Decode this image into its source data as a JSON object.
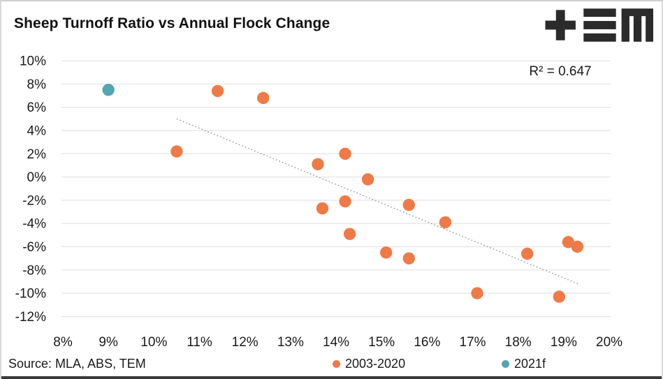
{
  "header": {
    "logo_name": "TEM"
  },
  "annotation": {
    "r_squared": "R² = 0.647"
  },
  "footer": {
    "source": "Source: MLA, ABS, TEM"
  },
  "chart_data": {
    "type": "scatter",
    "title": "Sheep Turnoff Ratio vs Annual Flock Change",
    "xlabel": "",
    "ylabel": "",
    "x_range": [
      8,
      20
    ],
    "y_range": [
      -12,
      10
    ],
    "x_tick_values": [
      8,
      9,
      10,
      11,
      12,
      13,
      14,
      15,
      16,
      17,
      18,
      19,
      20
    ],
    "x_tick_labels": [
      "8%",
      "9%",
      "10%",
      "11%",
      "12%",
      "13%",
      "14%",
      "15%",
      "16%",
      "17%",
      "18%",
      "19%",
      "20%"
    ],
    "y_tick_values": [
      10,
      8,
      6,
      4,
      2,
      0,
      -2,
      -4,
      -6,
      -8,
      -10,
      -12
    ],
    "y_tick_labels": [
      "10%",
      "8%",
      "6%",
      "4%",
      "2%",
      "0%",
      "-2%",
      "-4%",
      "-6%",
      "-8%",
      "-10%",
      "-12%"
    ],
    "grid": "horizontal-only",
    "legend_position": "bottom",
    "series": [
      {
        "name": "2003-2020",
        "color": "#EE7B47",
        "points": [
          [
            10.5,
            2.2
          ],
          [
            11.4,
            7.4
          ],
          [
            12.4,
            6.8
          ],
          [
            13.6,
            1.1
          ],
          [
            13.7,
            -2.7
          ],
          [
            14.2,
            2.0
          ],
          [
            14.2,
            -2.1
          ],
          [
            14.3,
            -4.9
          ],
          [
            14.7,
            -0.2
          ],
          [
            15.1,
            -6.5
          ],
          [
            15.6,
            -2.4
          ],
          [
            15.6,
            -7.0
          ],
          [
            16.4,
            -3.9
          ],
          [
            17.1,
            -10.0
          ],
          [
            18.2,
            -6.6
          ],
          [
            18.9,
            -10.3
          ],
          [
            19.1,
            -5.6
          ],
          [
            19.3,
            -6.0
          ]
        ]
      },
      {
        "name": "2021f",
        "color": "#53A5B2",
        "points": [
          [
            9.0,
            7.5
          ]
        ]
      }
    ],
    "trendline": {
      "style": "dotted",
      "color": "#8c8c8c",
      "from": [
        10.5,
        5.0
      ],
      "to": [
        19.35,
        -9.25
      ],
      "r_squared": 0.647
    },
    "colors": {
      "gridline": "#e7e7e7",
      "tick_text": "#1a1a1a"
    }
  }
}
